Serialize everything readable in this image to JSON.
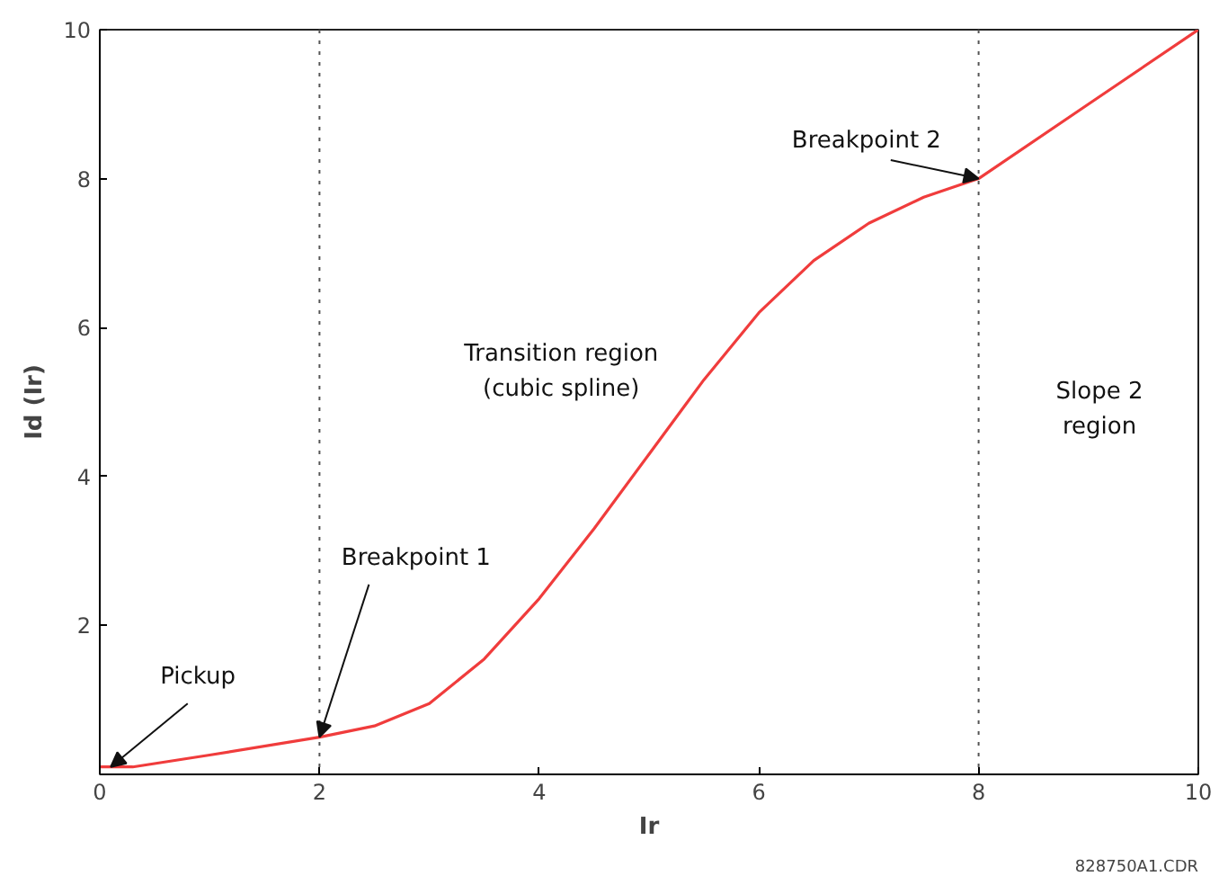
{
  "chart_data": {
    "type": "line",
    "xlabel": "Ir",
    "ylabel": "Id (Ir)",
    "x": [
      0,
      0.3,
      1,
      2,
      2.5,
      3,
      3.5,
      4,
      4.5,
      5,
      5.5,
      6,
      6.5,
      7,
      7.5,
      8,
      9,
      10
    ],
    "series": [
      {
        "color": "#f03c3c",
        "values": [
          0.1,
          0.1,
          0.26,
          0.5,
          0.65,
          0.95,
          1.55,
          2.36,
          3.3,
          4.3,
          5.3,
          6.2,
          6.9,
          7.4,
          7.75,
          8,
          9,
          10
        ]
      }
    ],
    "xlim": [
      0,
      10
    ],
    "ylim": [
      0,
      10
    ],
    "xticks": [
      0,
      2,
      4,
      6,
      8,
      10
    ],
    "yticks": [
      2,
      4,
      6,
      8,
      10
    ],
    "grid": false,
    "marker": "none",
    "line_style": "solid",
    "ref_lines": [
      {
        "axis": "x",
        "value": 2,
        "line_style": "dotted",
        "color": "#555555"
      },
      {
        "axis": "x",
        "value": 8,
        "line_style": "dotted",
        "color": "#555555"
      }
    ],
    "annotations": [
      {
        "text": "Pickup",
        "x": 0.1,
        "y": 0.1
      },
      {
        "text": "Breakpoint 1",
        "x": 2,
        "y": 0.5
      },
      {
        "text": "Breakpoint 2",
        "x": 8,
        "y": 8
      },
      "Transition region\n(cubic spline)",
      "Slope 2\nregion",
      "828750A1.CDR"
    ]
  }
}
